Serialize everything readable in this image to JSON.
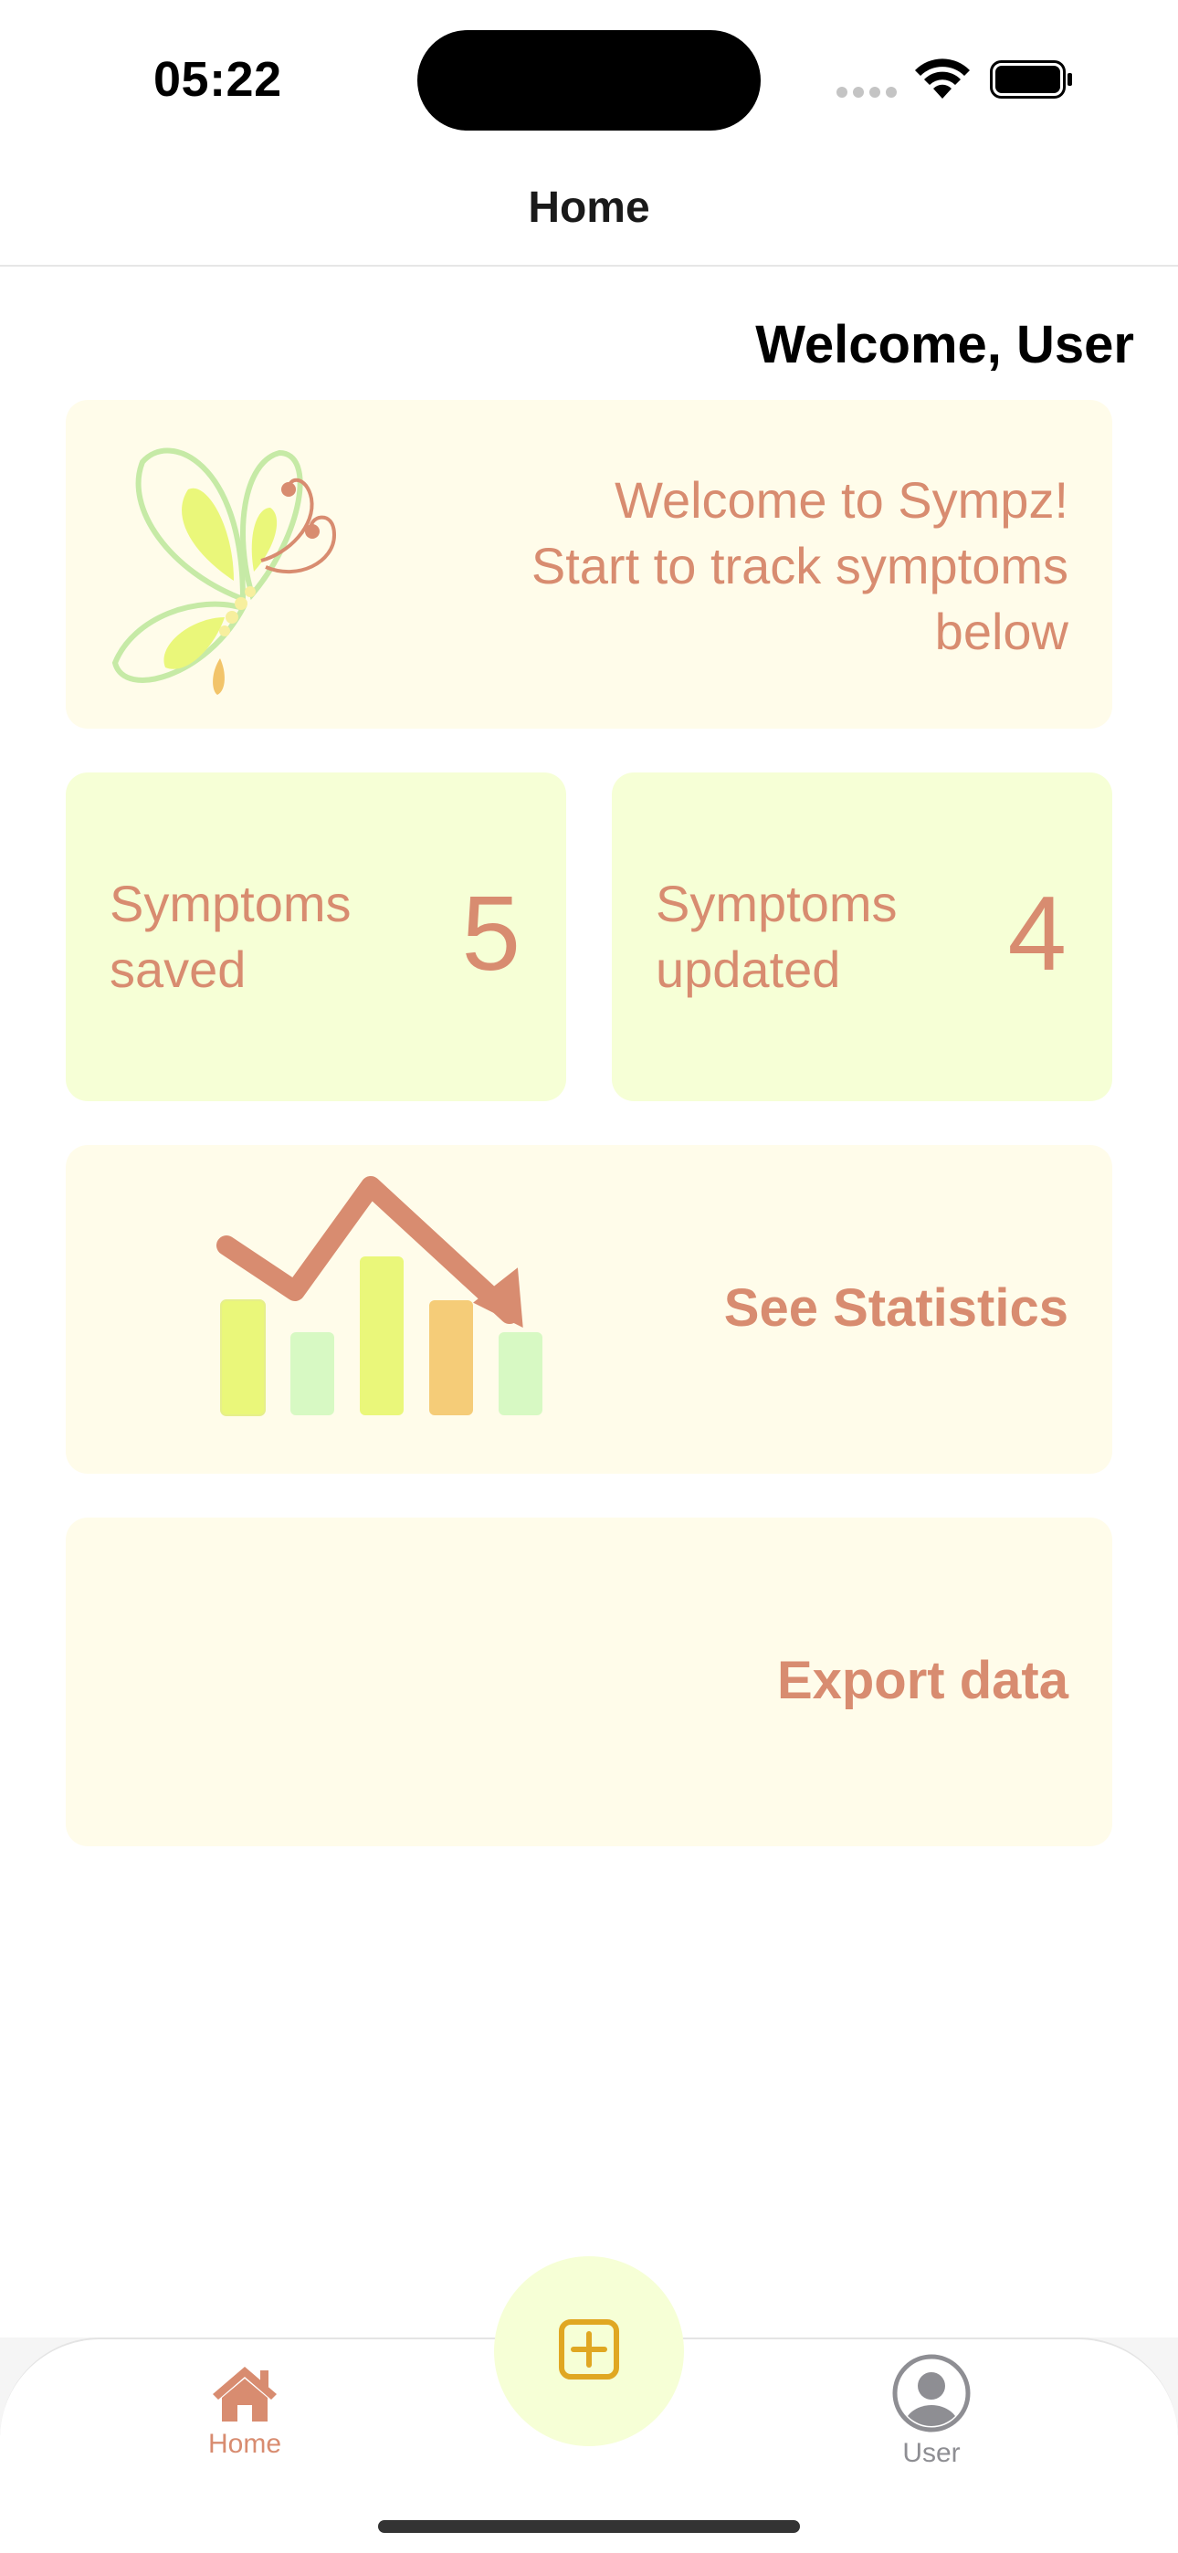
{
  "status_bar": {
    "time": "05:22"
  },
  "nav": {
    "title": "Home"
  },
  "welcome": {
    "greeting": "Welcome, User",
    "message": "Welcome to Sympz!\nStart to track symptoms\nbelow"
  },
  "stats": {
    "saved_label": "Symptoms\nsaved",
    "saved_value": "5",
    "updated_label": "Symptoms\nupdated",
    "updated_value": "4"
  },
  "actions": {
    "statistics_label": "See Statistics",
    "export_label": "Export data"
  },
  "tab_bar": {
    "home_label": "Home",
    "user_label": "User",
    "add_icon": "plus-square-icon"
  },
  "colors": {
    "accent": "#d88c70",
    "card_cream": "#fffcea",
    "card_lime": "#f6ffd6",
    "add_icon": "#e0a722"
  }
}
